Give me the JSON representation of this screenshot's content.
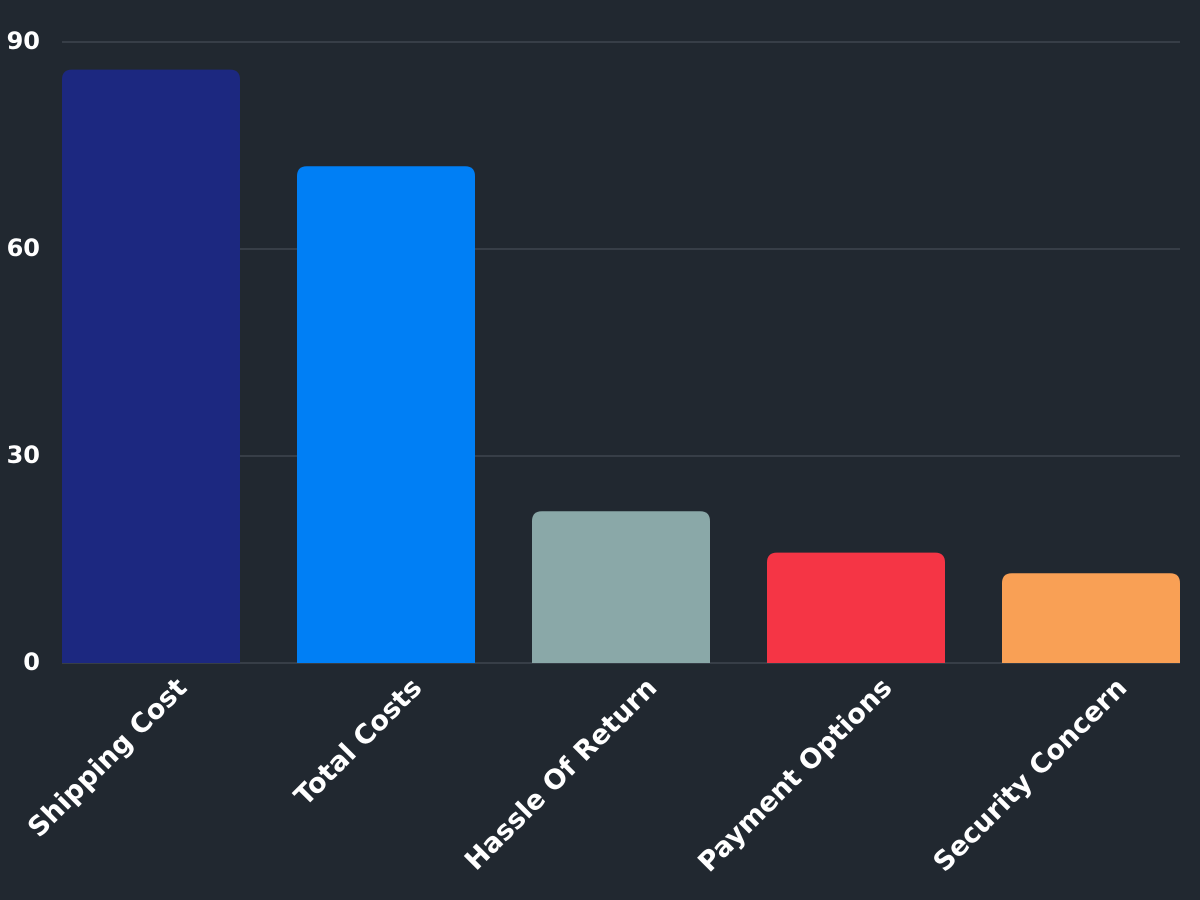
{
  "chart_data": {
    "type": "bar",
    "categories": [
      "Shipping Cost",
      "Total Costs",
      "Hassle Of Return",
      "Payment Options",
      "Security Concern"
    ],
    "values": [
      86,
      72,
      22,
      16,
      13
    ],
    "colors": [
      "#1c2880",
      "#007ff5",
      "#8aa8a8",
      "#f53545",
      "#f9a055"
    ],
    "ylim": [
      0,
      90
    ],
    "yticks": [
      0,
      30,
      60,
      90
    ],
    "grid": true
  }
}
